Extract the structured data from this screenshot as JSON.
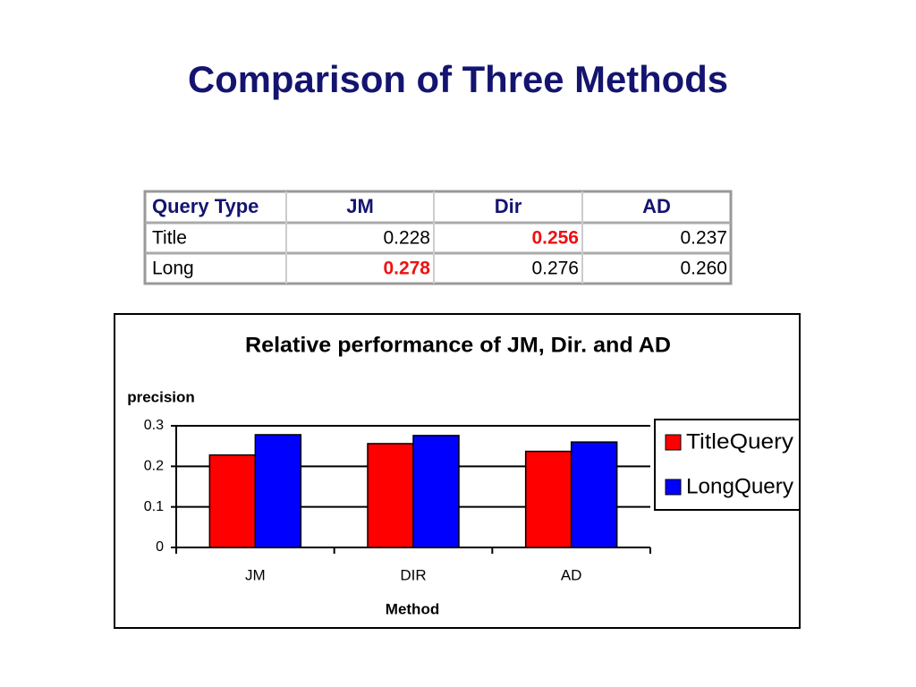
{
  "title": "Comparison of Three Methods",
  "table": {
    "header": [
      "Query Type",
      "JM",
      "Dir",
      "AD"
    ],
    "rows": [
      [
        "Title",
        "0.228",
        "0.256",
        "0.237"
      ],
      [
        "Long",
        "0.278",
        "0.276",
        "0.260"
      ]
    ],
    "highlight_cells": [
      [
        0,
        2
      ],
      [
        1,
        1
      ]
    ],
    "highlight_color": "#ee1111"
  },
  "chart_data": {
    "type": "bar",
    "title": "Relative performance of JM, Dir. and AD",
    "y_label": "precision",
    "x_label": "Method",
    "categories": [
      "JM",
      "DIR",
      "AD"
    ],
    "series": [
      {
        "name": "TitleQuery",
        "color": "#ff0000",
        "values": [
          0.228,
          0.256,
          0.237
        ]
      },
      {
        "name": "LongQuery",
        "color": "#0000ff",
        "values": [
          0.278,
          0.276,
          0.26
        ]
      }
    ],
    "ylim": [
      0,
      0.3
    ],
    "yticks": [
      0,
      0.1,
      0.2,
      0.3
    ],
    "grid": true,
    "legend": "right"
  }
}
